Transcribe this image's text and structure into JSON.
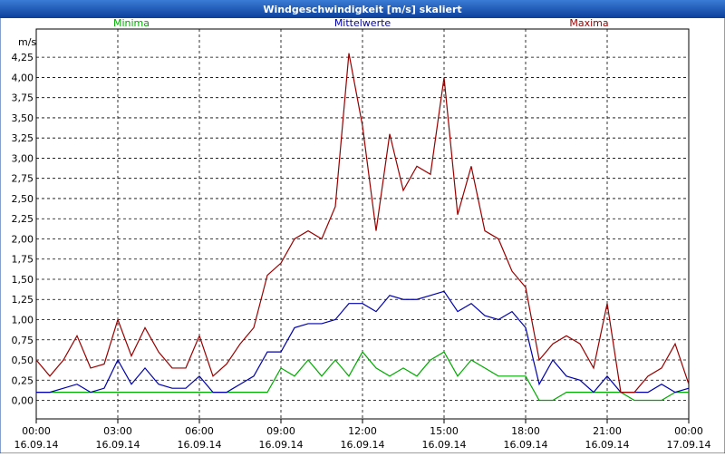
{
  "chart_data": {
    "type": "line",
    "title": "Windgeschwindigkeit [m/s] skaliert",
    "y_label": "m/s",
    "x": [
      0,
      0.5,
      1,
      1.5,
      2,
      2.5,
      3,
      3.5,
      4,
      4.5,
      5,
      5.5,
      6,
      6.5,
      7,
      7.5,
      8,
      8.5,
      9,
      9.5,
      10,
      10.5,
      11,
      11.5,
      12,
      12.5,
      13,
      13.5,
      14,
      14.5,
      15,
      15.5,
      16,
      16.5,
      17,
      17.5,
      18,
      18.5,
      19,
      19.5,
      20,
      20.5,
      21,
      21.5,
      22,
      22.5,
      23,
      23.5,
      24
    ],
    "xlim": [
      0,
      24
    ],
    "xticks": [
      {
        "value": 0,
        "label": "00:00",
        "date": "16.09.14"
      },
      {
        "value": 3,
        "label": "03:00",
        "date": "16.09.14"
      },
      {
        "value": 6,
        "label": "06:00",
        "date": "16.09.14"
      },
      {
        "value": 9,
        "label": "09:00",
        "date": "16.09.14"
      },
      {
        "value": 12,
        "label": "12:00",
        "date": "16.09.14"
      },
      {
        "value": 15,
        "label": "15:00",
        "date": "16.09.14"
      },
      {
        "value": 18,
        "label": "18:00",
        "date": "16.09.14"
      },
      {
        "value": 21,
        "label": "21:00",
        "date": "16.09.14"
      },
      {
        "value": 24,
        "label": "00:00",
        "date": "17.09.14"
      }
    ],
    "ylim": [
      -0.23,
      4.6
    ],
    "yticks": [
      {
        "value": 0,
        "label": "0,00"
      },
      {
        "value": 0.25,
        "label": "0,25"
      },
      {
        "value": 0.5,
        "label": "0,50"
      },
      {
        "value": 0.75,
        "label": "0,75"
      },
      {
        "value": 1,
        "label": "1,00"
      },
      {
        "value": 1.25,
        "label": "1,25"
      },
      {
        "value": 1.5,
        "label": "1,50"
      },
      {
        "value": 1.75,
        "label": "1,75"
      },
      {
        "value": 2,
        "label": "2,00"
      },
      {
        "value": 2.25,
        "label": "2,25"
      },
      {
        "value": 2.5,
        "label": "2,50"
      },
      {
        "value": 2.75,
        "label": "2,75"
      },
      {
        "value": 3,
        "label": "3,00"
      },
      {
        "value": 3.25,
        "label": "3,25"
      },
      {
        "value": 3.5,
        "label": "3,50"
      },
      {
        "value": 3.75,
        "label": "3,75"
      },
      {
        "value": 4,
        "label": "4,00"
      },
      {
        "value": 4.25,
        "label": "4,25"
      }
    ],
    "grid": true,
    "series": [
      {
        "name": "Minima",
        "color": "#00aa00",
        "values": [
          0.1,
          0.1,
          0.1,
          0.1,
          0.1,
          0.1,
          0.1,
          0.1,
          0.1,
          0.1,
          0.1,
          0.1,
          0.1,
          0.1,
          0.1,
          0.1,
          0.1,
          0.1,
          0.4,
          0.3,
          0.5,
          0.3,
          0.5,
          0.3,
          0.6,
          0.4,
          0.3,
          0.4,
          0.3,
          0.5,
          0.6,
          0.3,
          0.5,
          0.4,
          0.3,
          0.3,
          0.3,
          0,
          0,
          0.1,
          0.1,
          0.1,
          0.1,
          0.1,
          0,
          0,
          0,
          0.1,
          0.1
        ]
      },
      {
        "name": "Mittelwerte",
        "color": "#0000aa",
        "values": [
          0.1,
          0.1,
          0.15,
          0.2,
          0.1,
          0.15,
          0.5,
          0.2,
          0.4,
          0.2,
          0.15,
          0.15,
          0.3,
          0.1,
          0.1,
          0.2,
          0.3,
          0.6,
          0.6,
          0.9,
          0.95,
          0.95,
          1.0,
          1.2,
          1.2,
          1.1,
          1.3,
          1.25,
          1.25,
          1.3,
          1.35,
          1.1,
          1.2,
          1.05,
          1.0,
          1.1,
          0.9,
          0.2,
          0.5,
          0.3,
          0.25,
          0.1,
          0.3,
          0.1,
          0.1,
          0.1,
          0.2,
          0.1,
          0.15
        ]
      },
      {
        "name": "Maxima",
        "color": "#990000",
        "values": [
          0.5,
          0.3,
          0.5,
          0.8,
          0.4,
          0.45,
          1.0,
          0.55,
          0.9,
          0.6,
          0.4,
          0.4,
          0.8,
          0.3,
          0.45,
          0.7,
          0.9,
          1.55,
          1.7,
          2.0,
          2.1,
          2.0,
          2.4,
          4.3,
          3.4,
          2.1,
          3.3,
          2.6,
          2.9,
          2.8,
          4.0,
          2.3,
          2.9,
          2.1,
          2.0,
          1.6,
          1.4,
          0.5,
          0.7,
          0.8,
          0.7,
          0.4,
          1.2,
          0.1,
          0.1,
          0.3,
          0.4,
          0.7,
          0.2
        ]
      }
    ]
  }
}
